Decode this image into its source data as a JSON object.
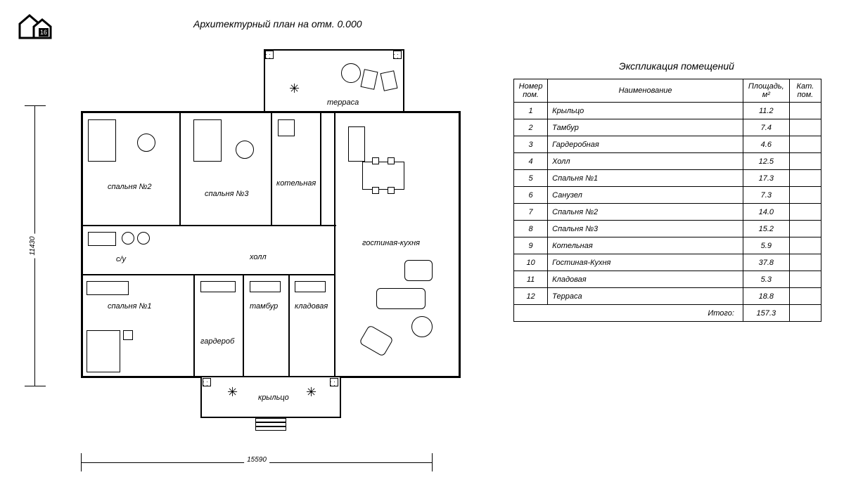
{
  "logo_badge": "16",
  "title": "Архитектурный план на отм. 0.000",
  "dimensions": {
    "width_label": "15590",
    "height_label": "11430"
  },
  "rooms_on_plan": {
    "terrace": "терраса",
    "bedroom2": "спальня №2",
    "bedroom3": "спальня №3",
    "boiler": "котельная",
    "bathroom": "с/у",
    "hall": "холл",
    "living_kitchen": "гостиная-кухня",
    "bedroom1": "спальня №1",
    "wardrobe": "гардероб",
    "tambour": "тамбур",
    "pantry": "кладовая",
    "porch": "крыльцо"
  },
  "table": {
    "title": "Экспликация помещений",
    "headers": {
      "num": "Номер пом.",
      "name": "Наименование",
      "area": "Площадь, м²",
      "cat": "Кат. пом."
    },
    "rows": [
      {
        "num": "1",
        "name": "Крыльцо",
        "area": "11.2",
        "cat": ""
      },
      {
        "num": "2",
        "name": "Тамбур",
        "area": "7.4",
        "cat": ""
      },
      {
        "num": "3",
        "name": "Гардеробная",
        "area": "4.6",
        "cat": ""
      },
      {
        "num": "4",
        "name": "Холл",
        "area": "12.5",
        "cat": ""
      },
      {
        "num": "5",
        "name": "Спальня №1",
        "area": "17.3",
        "cat": ""
      },
      {
        "num": "6",
        "name": "Санузел",
        "area": "7.3",
        "cat": ""
      },
      {
        "num": "7",
        "name": "Спальня №2",
        "area": "14.0",
        "cat": ""
      },
      {
        "num": "8",
        "name": "Спальня №3",
        "area": "15.2",
        "cat": ""
      },
      {
        "num": "9",
        "name": "Котельная",
        "area": "5.9",
        "cat": ""
      },
      {
        "num": "10",
        "name": "Гостиная-Кухня",
        "area": "37.8",
        "cat": ""
      },
      {
        "num": "11",
        "name": "Кладовая",
        "area": "5.3",
        "cat": ""
      },
      {
        "num": "12",
        "name": "Терраса",
        "area": "18.8",
        "cat": ""
      }
    ],
    "total_label": "Итого:",
    "total_value": "157.3"
  },
  "style": {
    "background": "#ffffff",
    "line_color": "#000000",
    "font_family": "cursive",
    "wall_stroke": 3,
    "thin_stroke": 1,
    "title_fontsize": 14,
    "label_fontsize": 11,
    "table_fontsize": 11
  }
}
